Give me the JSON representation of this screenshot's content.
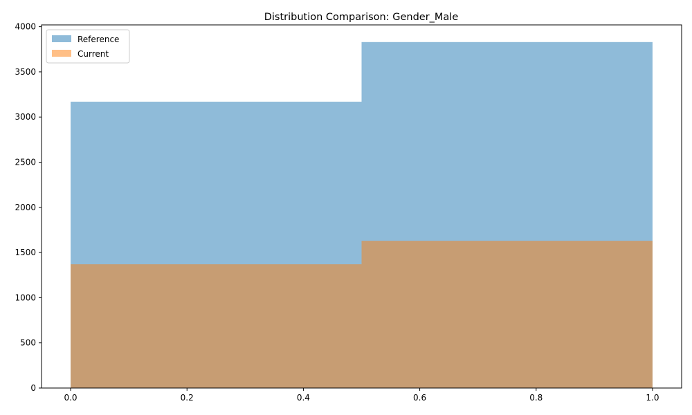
{
  "chart_data": {
    "type": "bar",
    "title": "Distribution Comparison: Gender_Male",
    "xlabel": "",
    "ylabel": "",
    "xlim": [
      -0.05,
      1.05
    ],
    "ylim": [
      0,
      4020
    ],
    "x_ticks": [
      "0.0",
      "0.2",
      "0.4",
      "0.6",
      "0.8",
      "1.0"
    ],
    "y_ticks": [
      "0",
      "500",
      "1000",
      "1500",
      "2000",
      "2500",
      "3000",
      "3500",
      "4000"
    ],
    "bins": [
      [
        0.0,
        0.5
      ],
      [
        0.5,
        1.0
      ]
    ],
    "series": [
      {
        "name": "Reference",
        "values": [
          3170,
          3830
        ],
        "color": "#1f77b4",
        "alpha": 0.5
      },
      {
        "name": "Current",
        "values": [
          1370,
          1630
        ],
        "color": "#ff7f0e",
        "alpha": 0.5
      }
    ],
    "legend": {
      "position": "top-left"
    },
    "grid": false
  }
}
